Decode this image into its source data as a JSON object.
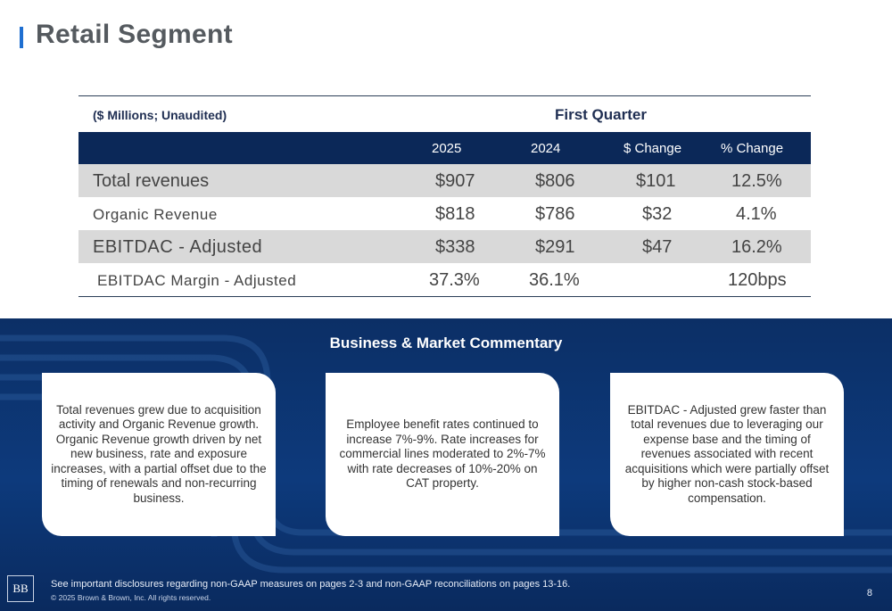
{
  "title": "Retail Segment",
  "table": {
    "units": "($ Millions; Unaudited)",
    "period": "First Quarter",
    "columns": [
      "2025",
      "2024",
      "$ Change",
      "% Change"
    ],
    "rows": [
      {
        "label": "Total revenues",
        "c2025": "$907",
        "c2024": "$806",
        "change": "$101",
        "pct": "12.5%"
      },
      {
        "label": "Organic Revenue",
        "c2025": "$818",
        "c2024": "$786",
        "change": "$32",
        "pct": "4.1%"
      },
      {
        "label": "EBITDAC - Adjusted",
        "c2025": "$338",
        "c2024": "$291",
        "change": "$47",
        "pct": "16.2%"
      },
      {
        "label": "EBITDAC Margin - Adjusted",
        "c2025": "37.3%",
        "c2024": "36.1%",
        "change": "",
        "pct": "120bps"
      }
    ]
  },
  "commentary": {
    "title": "Business & Market Commentary",
    "cards": [
      "Total revenues grew due to acquisition activity and Organic Revenue growth. Organic Revenue growth driven by net new business, rate and exposure increases, with a partial offset due to the timing of renewals and non-recurring business.",
      "Employee benefit rates continued to increase 7%-9%. Rate increases for commercial lines moderated to 2%-7% with rate decreases of 10%-20% on CAT property.",
      "EBITDAC - Adjusted grew faster than total revenues due to leveraging our expense base and the timing of revenues associated with recent acquisitions which were partially offset by higher non-cash stock-based compensation."
    ]
  },
  "footer": {
    "logo": "BB",
    "disclosure": "See important disclosures regarding non-GAAP measures on pages 2-3 and non-GAAP reconciliations on pages 13-16.",
    "copyright": "© 2025 Brown & Brown, Inc. All rights reserved.",
    "page_number": "8"
  },
  "colors": {
    "accent": "#1f6fd1",
    "navy": "#0b2858",
    "shade": "#d9d9d9"
  }
}
